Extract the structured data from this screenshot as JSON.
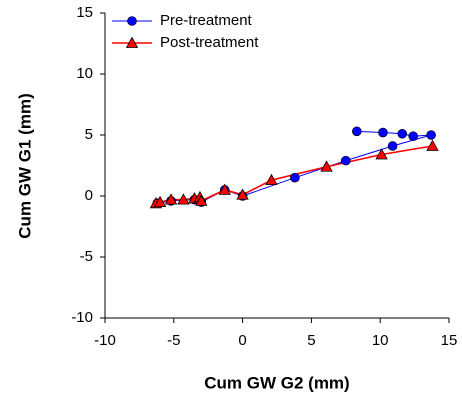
{
  "chart_data": {
    "type": "line",
    "x_label": "Cum GW G2 (mm)",
    "y_label": "Cum GW G1 (mm)",
    "xlim": [
      -10,
      15
    ],
    "xticks": [
      -10,
      -5,
      0,
      5,
      10,
      15
    ],
    "ylim": [
      -10,
      15
    ],
    "yticks": [
      -10,
      -5,
      0,
      5,
      10,
      15
    ],
    "legend": "upper left",
    "series": [
      {
        "name": "Pre-treatment",
        "color": "#0000ff",
        "marker": "circle",
        "x": [
          -6.2,
          -5.2,
          -3.5,
          -3.0,
          -1.3,
          0,
          3.8,
          7.5,
          10.9,
          13.7,
          12.4,
          11.6,
          10.2,
          8.3
        ],
        "values": [
          -0.6,
          -0.4,
          -0.3,
          -0.5,
          0.5,
          0,
          1.5,
          2.9,
          4.1,
          5.0,
          4.9,
          5.1,
          5.2,
          5.3
        ]
      },
      {
        "name": "Post-treatment",
        "color": "#ff0000",
        "marker": "triangle",
        "x": [
          -6.3,
          -6.0,
          -5.2,
          -4.3,
          -3.5,
          -3.1,
          -3.0,
          -1.3,
          0,
          2.1,
          6.1,
          10.1,
          13.8
        ],
        "values": [
          -0.6,
          -0.5,
          -0.3,
          -0.3,
          -0.2,
          -0.1,
          -0.4,
          0.5,
          0.1,
          1.3,
          2.4,
          3.4,
          4.1
        ]
      }
    ]
  }
}
